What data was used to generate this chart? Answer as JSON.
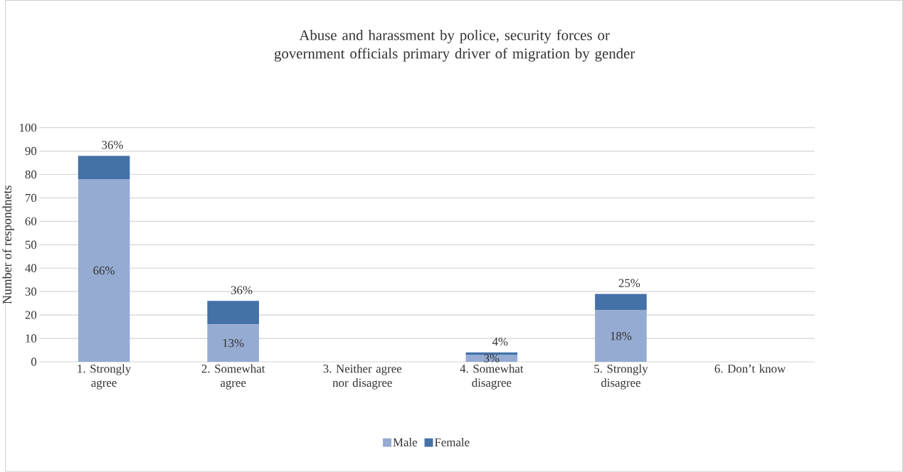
{
  "chart_data": {
    "type": "bar",
    "title": "Abuse and harassment by police, security forces or government officials primary driver of migration by gender",
    "ylabel": "Number of respondnets",
    "categories": [
      "1. Strongly agree",
      "2. Somewhat agree",
      "3. Neither agree nor disagree",
      "4. Somewhat disagree",
      "5. Strongly disagree",
      "6. Don’t know"
    ],
    "stacked": true,
    "series": [
      {
        "name": "Male",
        "color": "#95abd2",
        "values": [
          78,
          16,
          null,
          3,
          22,
          null
        ]
      },
      {
        "name": "Female",
        "color": "#4472a8",
        "values": [
          10,
          10,
          null,
          1,
          7,
          null
        ]
      }
    ],
    "annotations": [
      "66%",
      {
        "text": "36%",
        "x": "1. Strongly agree",
        "y": 88
      },
      {
        "text": "13%",
        "x": "2. Somewhat agree",
        "y": 16
      },
      {
        "text": "36%",
        "x": "2. Somewhat agree",
        "y": 26
      },
      {
        "text": "3%",
        "x": "4. Somewhat disagree",
        "y": 3
      },
      {
        "text": "4%",
        "x": "4. Somewhat disagree",
        "y": 4
      },
      {
        "text": "18%",
        "x": "5. Strongly disagree",
        "y": 22
      },
      {
        "text": "25%",
        "x": "5. Strongly disagree",
        "y": 29
      }
    ],
    "ylim": [
      0,
      100
    ],
    "yticks": [
      0,
      10,
      20,
      30,
      40,
      50,
      60,
      70,
      80,
      90,
      100
    ],
    "grid": "y",
    "legend": "bottom"
  }
}
